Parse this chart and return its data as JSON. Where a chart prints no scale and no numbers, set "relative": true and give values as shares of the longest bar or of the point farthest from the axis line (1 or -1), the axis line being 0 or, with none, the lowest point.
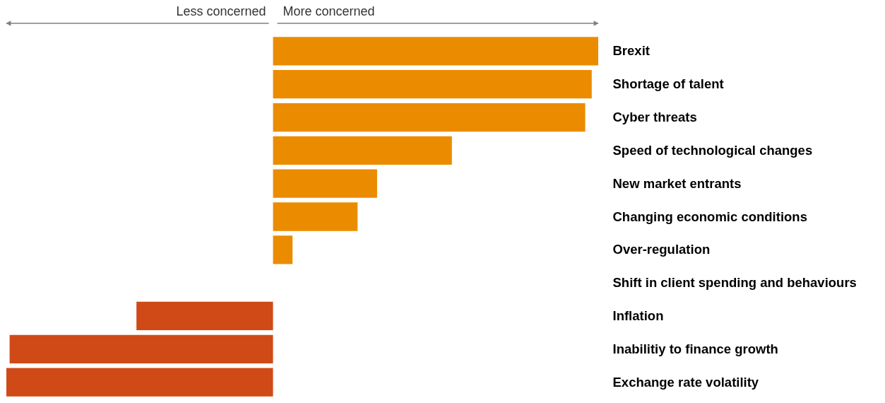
{
  "chart_data": {
    "type": "bar",
    "orientation": "horizontal",
    "relative": true,
    "categories": [
      "Brexit",
      "Shortage of talent",
      "Cyber threats",
      "Speed of technological changes",
      "New market entrants",
      "Changing economic conditions",
      "Over-regulation",
      "Shift in client spending and behaviours",
      "Inflation",
      "Inabilitiy to finance growth",
      "Exchange rate volatility"
    ],
    "values": [
      1,
      0.98,
      0.96,
      0.55,
      0.32,
      0.26,
      0.06,
      0,
      -0.42,
      -0.81,
      -0.82
    ],
    "colors": [
      "#eb8c00",
      "#eb8c00",
      "#eb8c00",
      "#eb8c00",
      "#eb8c00",
      "#eb8c00",
      "#eb8c00",
      "#eb8c00",
      "#d04a17",
      "#d04a17",
      "#d04a17"
    ],
    "annotations": [
      "Less concerned",
      "More concerned"
    ]
  }
}
